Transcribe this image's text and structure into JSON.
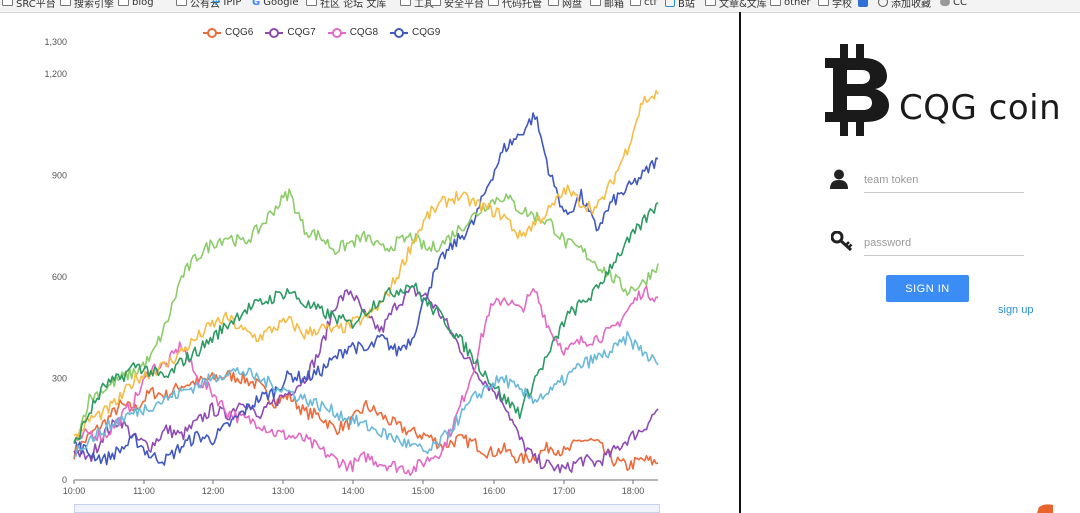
{
  "bookmarks": [
    {
      "label": "SRC平台",
      "icon": "folder-icon"
    },
    {
      "label": "搜索引擎",
      "icon": "folder-icon"
    },
    {
      "label": "blog",
      "icon": "folder-icon"
    },
    {
      "label": "公有云",
      "icon": "folder-icon"
    },
    {
      "label": "IPIP",
      "icon": "ipip-icon"
    },
    {
      "label": "Google",
      "icon": "google-icon"
    },
    {
      "label": "社区 论坛 文库",
      "icon": "folder-icon"
    },
    {
      "label": "工具",
      "icon": "folder-icon"
    },
    {
      "label": "安全平台",
      "icon": "folder-icon"
    },
    {
      "label": "代码托管",
      "icon": "folder-icon"
    },
    {
      "label": "网盘",
      "icon": "folder-icon"
    },
    {
      "label": "邮箱",
      "icon": "folder-icon"
    },
    {
      "label": "ctf",
      "icon": "folder-icon"
    },
    {
      "label": "B站",
      "icon": "bilibili-icon"
    },
    {
      "label": "文章&文库",
      "icon": "folder-icon"
    },
    {
      "label": "other",
      "icon": "folder-icon"
    },
    {
      "label": "学校",
      "icon": "folder-icon"
    },
    {
      "label": "",
      "icon": "bookmark-app-icon"
    },
    {
      "label": "添加收藏",
      "icon": "globe-icon"
    },
    {
      "label": "CC",
      "icon": "cloud-icon"
    }
  ],
  "chart_data": {
    "type": "line",
    "x_ticks": [
      "10:00",
      "11:00",
      "12:00",
      "13:00",
      "14:00",
      "15:00",
      "16:00",
      "17:00",
      "18:00"
    ],
    "y_ticks": [
      "0",
      "300",
      "600",
      "900",
      "1,200",
      "1,300"
    ],
    "ylim": [
      0,
      1300
    ],
    "legend": [
      "CQG6",
      "CQG7",
      "CQG8",
      "CQG9"
    ],
    "legend_placement": "top",
    "series": [
      {
        "name": "CQG6",
        "color": "#ee6a3a",
        "values": [
          80,
          130,
          170,
          220,
          210,
          260,
          250,
          280,
          290,
          300,
          310,
          300,
          280,
          230,
          250,
          200,
          190,
          150,
          170,
          220,
          190,
          160,
          140,
          130,
          100,
          120,
          110,
          80,
          90,
          60,
          70,
          100,
          80,
          120,
          110,
          60,
          40,
          60,
          50
        ]
      },
      {
        "name": "CQG7",
        "color": "#8e4bb3",
        "values": [
          90,
          60,
          140,
          180,
          120,
          100,
          150,
          130,
          170,
          210,
          190,
          240,
          180,
          230,
          260,
          300,
          380,
          520,
          560,
          480,
          440,
          520,
          560,
          540,
          480,
          400,
          330,
          280,
          230,
          120,
          60,
          40,
          30,
          60,
          50,
          80,
          120,
          150,
          210
        ]
      },
      {
        "name": "CQG8",
        "color": "#e36ac4",
        "values": [
          110,
          140,
          130,
          180,
          240,
          330,
          340,
          400,
          300,
          260,
          200,
          180,
          170,
          140,
          130,
          120,
          90,
          60,
          40,
          70,
          50,
          40,
          30,
          60,
          90,
          200,
          330,
          500,
          540,
          500,
          560,
          440,
          380,
          410,
          420,
          440,
          500,
          560,
          540
        ]
      },
      {
        "name": "CQG9",
        "color": "#4158c1",
        "values": [
          110,
          80,
          60,
          90,
          120,
          70,
          60,
          100,
          130,
          120,
          160,
          200,
          240,
          260,
          310,
          300,
          320,
          360,
          400,
          380,
          420,
          380,
          420,
          560,
          660,
          710,
          760,
          880,
          980,
          1020,
          1080,
          900,
          780,
          840,
          740,
          820,
          860,
          900,
          950
        ]
      },
      {
        "name": "",
        "color": "#8ccc6a",
        "values": [
          100,
          240,
          270,
          300,
          320,
          360,
          460,
          600,
          660,
          700,
          720,
          700,
          740,
          800,
          850,
          740,
          720,
          680,
          700,
          720,
          680,
          700,
          720,
          680,
          700,
          740,
          780,
          820,
          840,
          800,
          780,
          760,
          700,
          680,
          640,
          600,
          560,
          580,
          640
        ]
      },
      {
        "name": "",
        "color": "#f5bd47",
        "values": [
          120,
          180,
          200,
          240,
          300,
          320,
          340,
          380,
          420,
          460,
          480,
          440,
          420,
          450,
          470,
          430,
          450,
          440,
          460,
          480,
          520,
          600,
          700,
          780,
          820,
          840,
          820,
          800,
          780,
          720,
          760,
          800,
          860,
          820,
          800,
          880,
          980,
          1120,
          1140
        ]
      },
      {
        "name": "",
        "color": "#2e9a64",
        "values": [
          100,
          200,
          280,
          300,
          340,
          320,
          300,
          350,
          380,
          420,
          460,
          500,
          520,
          540,
          560,
          520,
          500,
          480,
          460,
          500,
          540,
          560,
          580,
          520,
          480,
          420,
          360,
          300,
          240,
          200,
          300,
          380,
          480,
          520,
          560,
          640,
          700,
          760,
          820
        ]
      },
      {
        "name": "",
        "color": "#6ab9d9",
        "values": [
          80,
          120,
          150,
          180,
          200,
          220,
          240,
          260,
          280,
          300,
          320,
          320,
          300,
          280,
          260,
          240,
          220,
          200,
          180,
          160,
          140,
          120,
          100,
          80,
          120,
          180,
          240,
          280,
          300,
          260,
          240,
          260,
          300,
          340,
          360,
          380,
          420,
          380,
          340
        ]
      }
    ]
  },
  "login": {
    "title": "CQG coin",
    "team_token_placeholder": "team token",
    "password_placeholder": "password",
    "signin_label": "SIGN IN",
    "signup_label": "sign up"
  }
}
